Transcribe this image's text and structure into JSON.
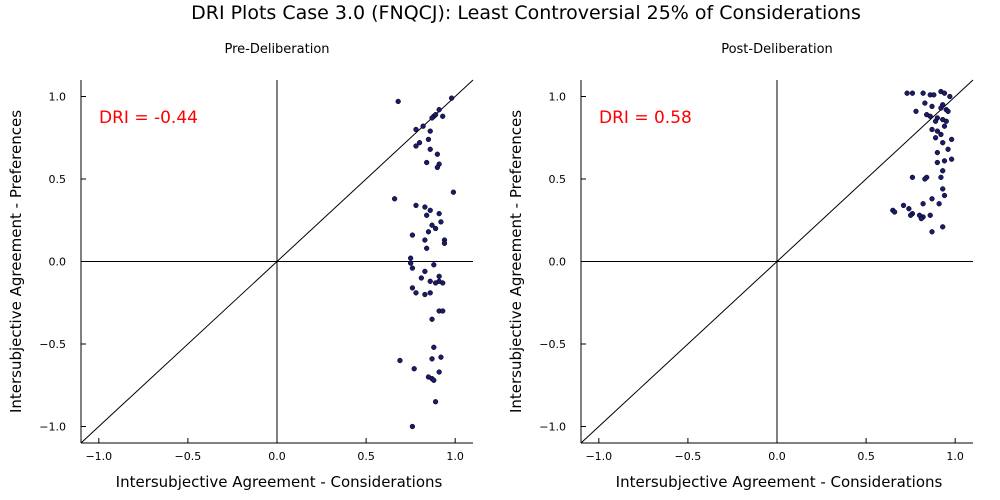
{
  "figure": {
    "title": "DRI Plots Case 3.0 (FNQCJ): Least Controversial 25% of Considerations"
  },
  "chart_data": [
    {
      "type": "scatter",
      "title": "Pre-Deliberation",
      "xlabel": "Intersubjective Agreement - Considerations",
      "ylabel": "Intersubjective Agreement - Preferences",
      "xlim": [
        -1.1,
        1.1
      ],
      "ylim": [
        -1.1,
        1.1
      ],
      "xticks": [
        -1.0,
        -0.5,
        0.0,
        0.5,
        1.0
      ],
      "yticks": [
        -1.0,
        -0.5,
        0.0,
        0.5,
        1.0
      ],
      "xtick_labels": [
        "−1.0",
        "−0.5",
        "0.0",
        "0.5",
        "1.0"
      ],
      "ytick_labels": [
        "−1.0",
        "−0.5",
        "0.0",
        "0.5",
        "1.0"
      ],
      "grid": false,
      "reference_lines": [
        "x=0",
        "y=0",
        "y=x"
      ],
      "annotation": {
        "text": "DRI = -0.44",
        "color": "#ff0000"
      },
      "point_color": "#1a1a6e",
      "points": [
        [
          0.68,
          0.97
        ],
        [
          0.98,
          0.99
        ],
        [
          0.91,
          0.92
        ],
        [
          0.88,
          0.88
        ],
        [
          0.89,
          0.89
        ],
        [
          0.93,
          0.88
        ],
        [
          0.87,
          0.87
        ],
        [
          0.78,
          0.8
        ],
        [
          0.82,
          0.82
        ],
        [
          0.86,
          0.79
        ],
        [
          0.85,
          0.74
        ],
        [
          0.8,
          0.72
        ],
        [
          0.78,
          0.7
        ],
        [
          0.86,
          0.68
        ],
        [
          0.9,
          0.65
        ],
        [
          0.84,
          0.6
        ],
        [
          0.91,
          0.59
        ],
        [
          0.9,
          0.57
        ],
        [
          0.99,
          0.42
        ],
        [
          0.66,
          0.38
        ],
        [
          0.78,
          0.34
        ],
        [
          0.83,
          0.33
        ],
        [
          0.86,
          0.31
        ],
        [
          0.84,
          0.28
        ],
        [
          0.91,
          0.29
        ],
        [
          0.92,
          0.24
        ],
        [
          0.87,
          0.22
        ],
        [
          0.89,
          0.2
        ],
        [
          0.85,
          0.18
        ],
        [
          0.83,
          0.13
        ],
        [
          0.76,
          0.16
        ],
        [
          0.94,
          0.13
        ],
        [
          0.94,
          0.11
        ],
        [
          0.84,
          0.08
        ],
        [
          0.75,
          0.02
        ],
        [
          0.75,
          -0.01
        ],
        [
          0.76,
          -0.04
        ],
        [
          0.88,
          -0.02
        ],
        [
          0.83,
          -0.06
        ],
        [
          0.91,
          -0.09
        ],
        [
          0.86,
          -0.12
        ],
        [
          0.81,
          -0.1
        ],
        [
          0.91,
          -0.12
        ],
        [
          0.89,
          -0.13
        ],
        [
          0.93,
          -0.13
        ],
        [
          0.76,
          -0.16
        ],
        [
          0.78,
          -0.19
        ],
        [
          0.83,
          -0.2
        ],
        [
          0.86,
          -0.19
        ],
        [
          0.87,
          -0.35
        ],
        [
          0.91,
          -0.3
        ],
        [
          0.93,
          -0.3
        ],
        [
          0.88,
          -0.52
        ],
        [
          0.87,
          -0.59
        ],
        [
          0.69,
          -0.6
        ],
        [
          0.92,
          -0.58
        ],
        [
          0.77,
          -0.65
        ],
        [
          0.91,
          -0.67
        ],
        [
          0.85,
          -0.7
        ],
        [
          0.87,
          -0.71
        ],
        [
          0.88,
          -0.72
        ],
        [
          0.89,
          -0.85
        ],
        [
          0.76,
          -1.0
        ]
      ]
    },
    {
      "type": "scatter",
      "title": "Post-Deliberation",
      "xlabel": "Intersubjective Agreement - Considerations",
      "ylabel": "Intersubjective Agreement - Preferences",
      "xlim": [
        -1.1,
        1.1
      ],
      "ylim": [
        -1.1,
        1.1
      ],
      "xticks": [
        -1.0,
        -0.5,
        0.0,
        0.5,
        1.0
      ],
      "yticks": [
        -1.0,
        -0.5,
        0.0,
        0.5,
        1.0
      ],
      "xtick_labels": [
        "−1.0",
        "−0.5",
        "0.0",
        "0.5",
        "1.0"
      ],
      "ytick_labels": [
        "−1.0",
        "−0.5",
        "0.0",
        "0.5",
        "1.0"
      ],
      "grid": false,
      "reference_lines": [
        "x=0",
        "y=0",
        "y=x"
      ],
      "annotation": {
        "text": "DRI = 0.58",
        "color": "#ff0000"
      },
      "point_color": "#1a1a6e",
      "points": [
        [
          0.73,
          1.02
        ],
        [
          0.76,
          1.02
        ],
        [
          0.82,
          1.02
        ],
        [
          0.86,
          1.01
        ],
        [
          0.88,
          1.01
        ],
        [
          0.92,
          1.03
        ],
        [
          0.94,
          1.02
        ],
        [
          0.97,
          1.0
        ],
        [
          0.83,
          0.96
        ],
        [
          0.87,
          0.94
        ],
        [
          0.93,
          0.95
        ],
        [
          0.92,
          0.93
        ],
        [
          0.95,
          0.92
        ],
        [
          0.96,
          0.91
        ],
        [
          0.78,
          0.91
        ],
        [
          0.84,
          0.89
        ],
        [
          0.86,
          0.88
        ],
        [
          0.9,
          0.87
        ],
        [
          0.89,
          0.85
        ],
        [
          0.93,
          0.86
        ],
        [
          0.95,
          0.85
        ],
        [
          0.94,
          0.82
        ],
        [
          0.87,
          0.8
        ],
        [
          0.9,
          0.79
        ],
        [
          0.92,
          0.77
        ],
        [
          0.89,
          0.75
        ],
        [
          0.98,
          0.74
        ],
        [
          0.93,
          0.72
        ],
        [
          0.96,
          0.68
        ],
        [
          0.9,
          0.66
        ],
        [
          0.98,
          0.62
        ],
        [
          0.94,
          0.61
        ],
        [
          0.9,
          0.6
        ],
        [
          0.93,
          0.55
        ],
        [
          0.92,
          0.51
        ],
        [
          0.84,
          0.51
        ],
        [
          0.83,
          0.5
        ],
        [
          0.76,
          0.51
        ],
        [
          0.93,
          0.44
        ],
        [
          0.94,
          0.4
        ],
        [
          0.87,
          0.38
        ],
        [
          0.91,
          0.35
        ],
        [
          0.82,
          0.35
        ],
        [
          0.71,
          0.34
        ],
        [
          0.74,
          0.32
        ],
        [
          0.65,
          0.31
        ],
        [
          0.66,
          0.3
        ],
        [
          0.76,
          0.29
        ],
        [
          0.8,
          0.28
        ],
        [
          0.75,
          0.28
        ],
        [
          0.82,
          0.27
        ],
        [
          0.86,
          0.28
        ],
        [
          0.81,
          0.26
        ],
        [
          0.93,
          0.21
        ],
        [
          0.87,
          0.18
        ]
      ]
    }
  ]
}
